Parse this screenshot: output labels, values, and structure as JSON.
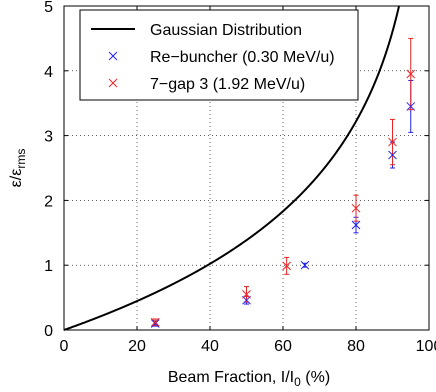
{
  "chart_data": {
    "type": "scatter",
    "xlabel": "Beam Fraction, I/I",
    "xlabel_sub": "0",
    "xlabel_unit": " (%)",
    "ylabel": "ε/ε",
    "ylabel_sub": "rms",
    "xlim": [
      0,
      100
    ],
    "ylim": [
      0,
      5
    ],
    "x_ticks": [
      "0",
      "20",
      "40",
      "60",
      "80",
      "100"
    ],
    "y_ticks": [
      "0",
      "1",
      "2",
      "3",
      "4",
      "5"
    ],
    "grid": "dotted",
    "legend_position": "top-left",
    "curve": {
      "name": "Gaussian Distribution",
      "color": "#000000",
      "formula": "-2*ln(1-x/100)"
    },
    "series": [
      {
        "name": "Re−buncher (0.30 MeV/u)",
        "color": "#2222ee",
        "marker": "x",
        "points": [
          {
            "x": 25,
            "y": 0.1,
            "err": 0.04
          },
          {
            "x": 50,
            "y": 0.46,
            "err": 0.06
          },
          {
            "x": 66,
            "y": 1.0,
            "err": 0.03
          },
          {
            "x": 80,
            "y": 1.62,
            "err": 0.12
          },
          {
            "x": 90,
            "y": 2.7,
            "err": 0.2
          },
          {
            "x": 95,
            "y": 3.45,
            "err": 0.4
          }
        ]
      },
      {
        "name": "7−gap 3 (1.92 MeV/u)",
        "color": "#ee2222",
        "marker": "x",
        "points": [
          {
            "x": 25,
            "y": 0.12,
            "err": 0.05
          },
          {
            "x": 50,
            "y": 0.55,
            "err": 0.12
          },
          {
            "x": 61,
            "y": 0.99,
            "err": 0.13
          },
          {
            "x": 80,
            "y": 1.88,
            "err": 0.2
          },
          {
            "x": 90,
            "y": 2.9,
            "err": 0.35
          },
          {
            "x": 95,
            "y": 3.95,
            "err": 0.55
          }
        ]
      }
    ]
  }
}
